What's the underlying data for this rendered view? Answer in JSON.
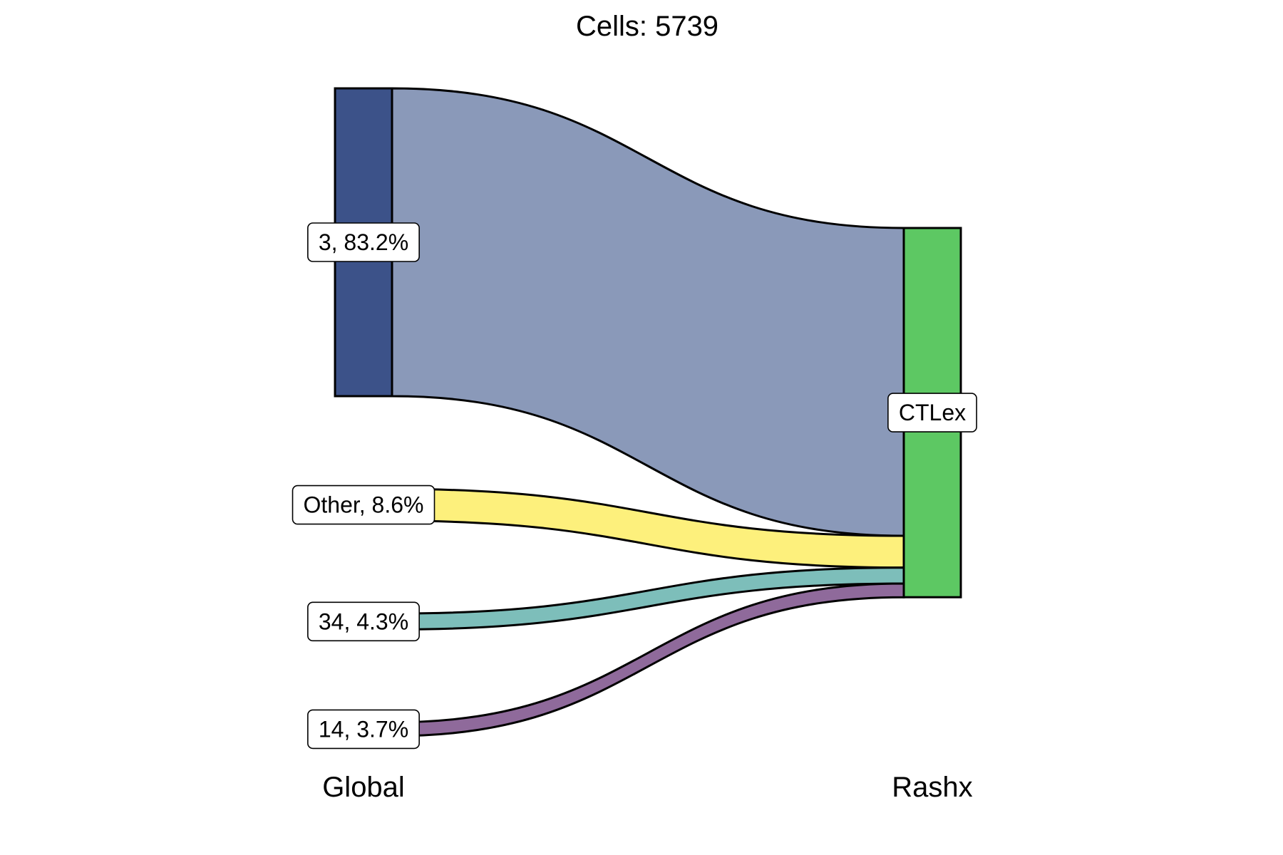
{
  "title": "Cells:  5739",
  "chart_data": {
    "type": "sankey",
    "title": "Cells:  5739",
    "total_cells": 5739,
    "axes": [
      "Global",
      "Rashx"
    ],
    "sources": [
      {
        "key": "3",
        "label": "3, 83.2%",
        "percent": 83.2,
        "node_color": "#3c5289",
        "flow_color": "#8a99b9"
      },
      {
        "key": "Other",
        "label": "Other, 8.6%",
        "percent": 8.6,
        "node_color": "#fdf07c",
        "flow_color": "#fdf07c"
      },
      {
        "key": "34",
        "label": "34, 4.3%",
        "percent": 4.3,
        "node_color": "#7dbeba",
        "flow_color": "#7dbeba"
      },
      {
        "key": "14",
        "label": "14, 3.7%",
        "percent": 3.7,
        "node_color": "#8f6a9b",
        "flow_color": "#8f6a9b"
      }
    ],
    "target": {
      "label": "CTLex",
      "percent": 100,
      "color": "#5dc863"
    },
    "flows": [
      {
        "from": "3",
        "to": "CTLex",
        "percent": 83.2
      },
      {
        "from": "Other",
        "to": "CTLex",
        "percent": 8.6
      },
      {
        "from": "34",
        "to": "CTLex",
        "percent": 4.3
      },
      {
        "from": "14",
        "to": "CTLex",
        "percent": 3.7
      }
    ]
  }
}
